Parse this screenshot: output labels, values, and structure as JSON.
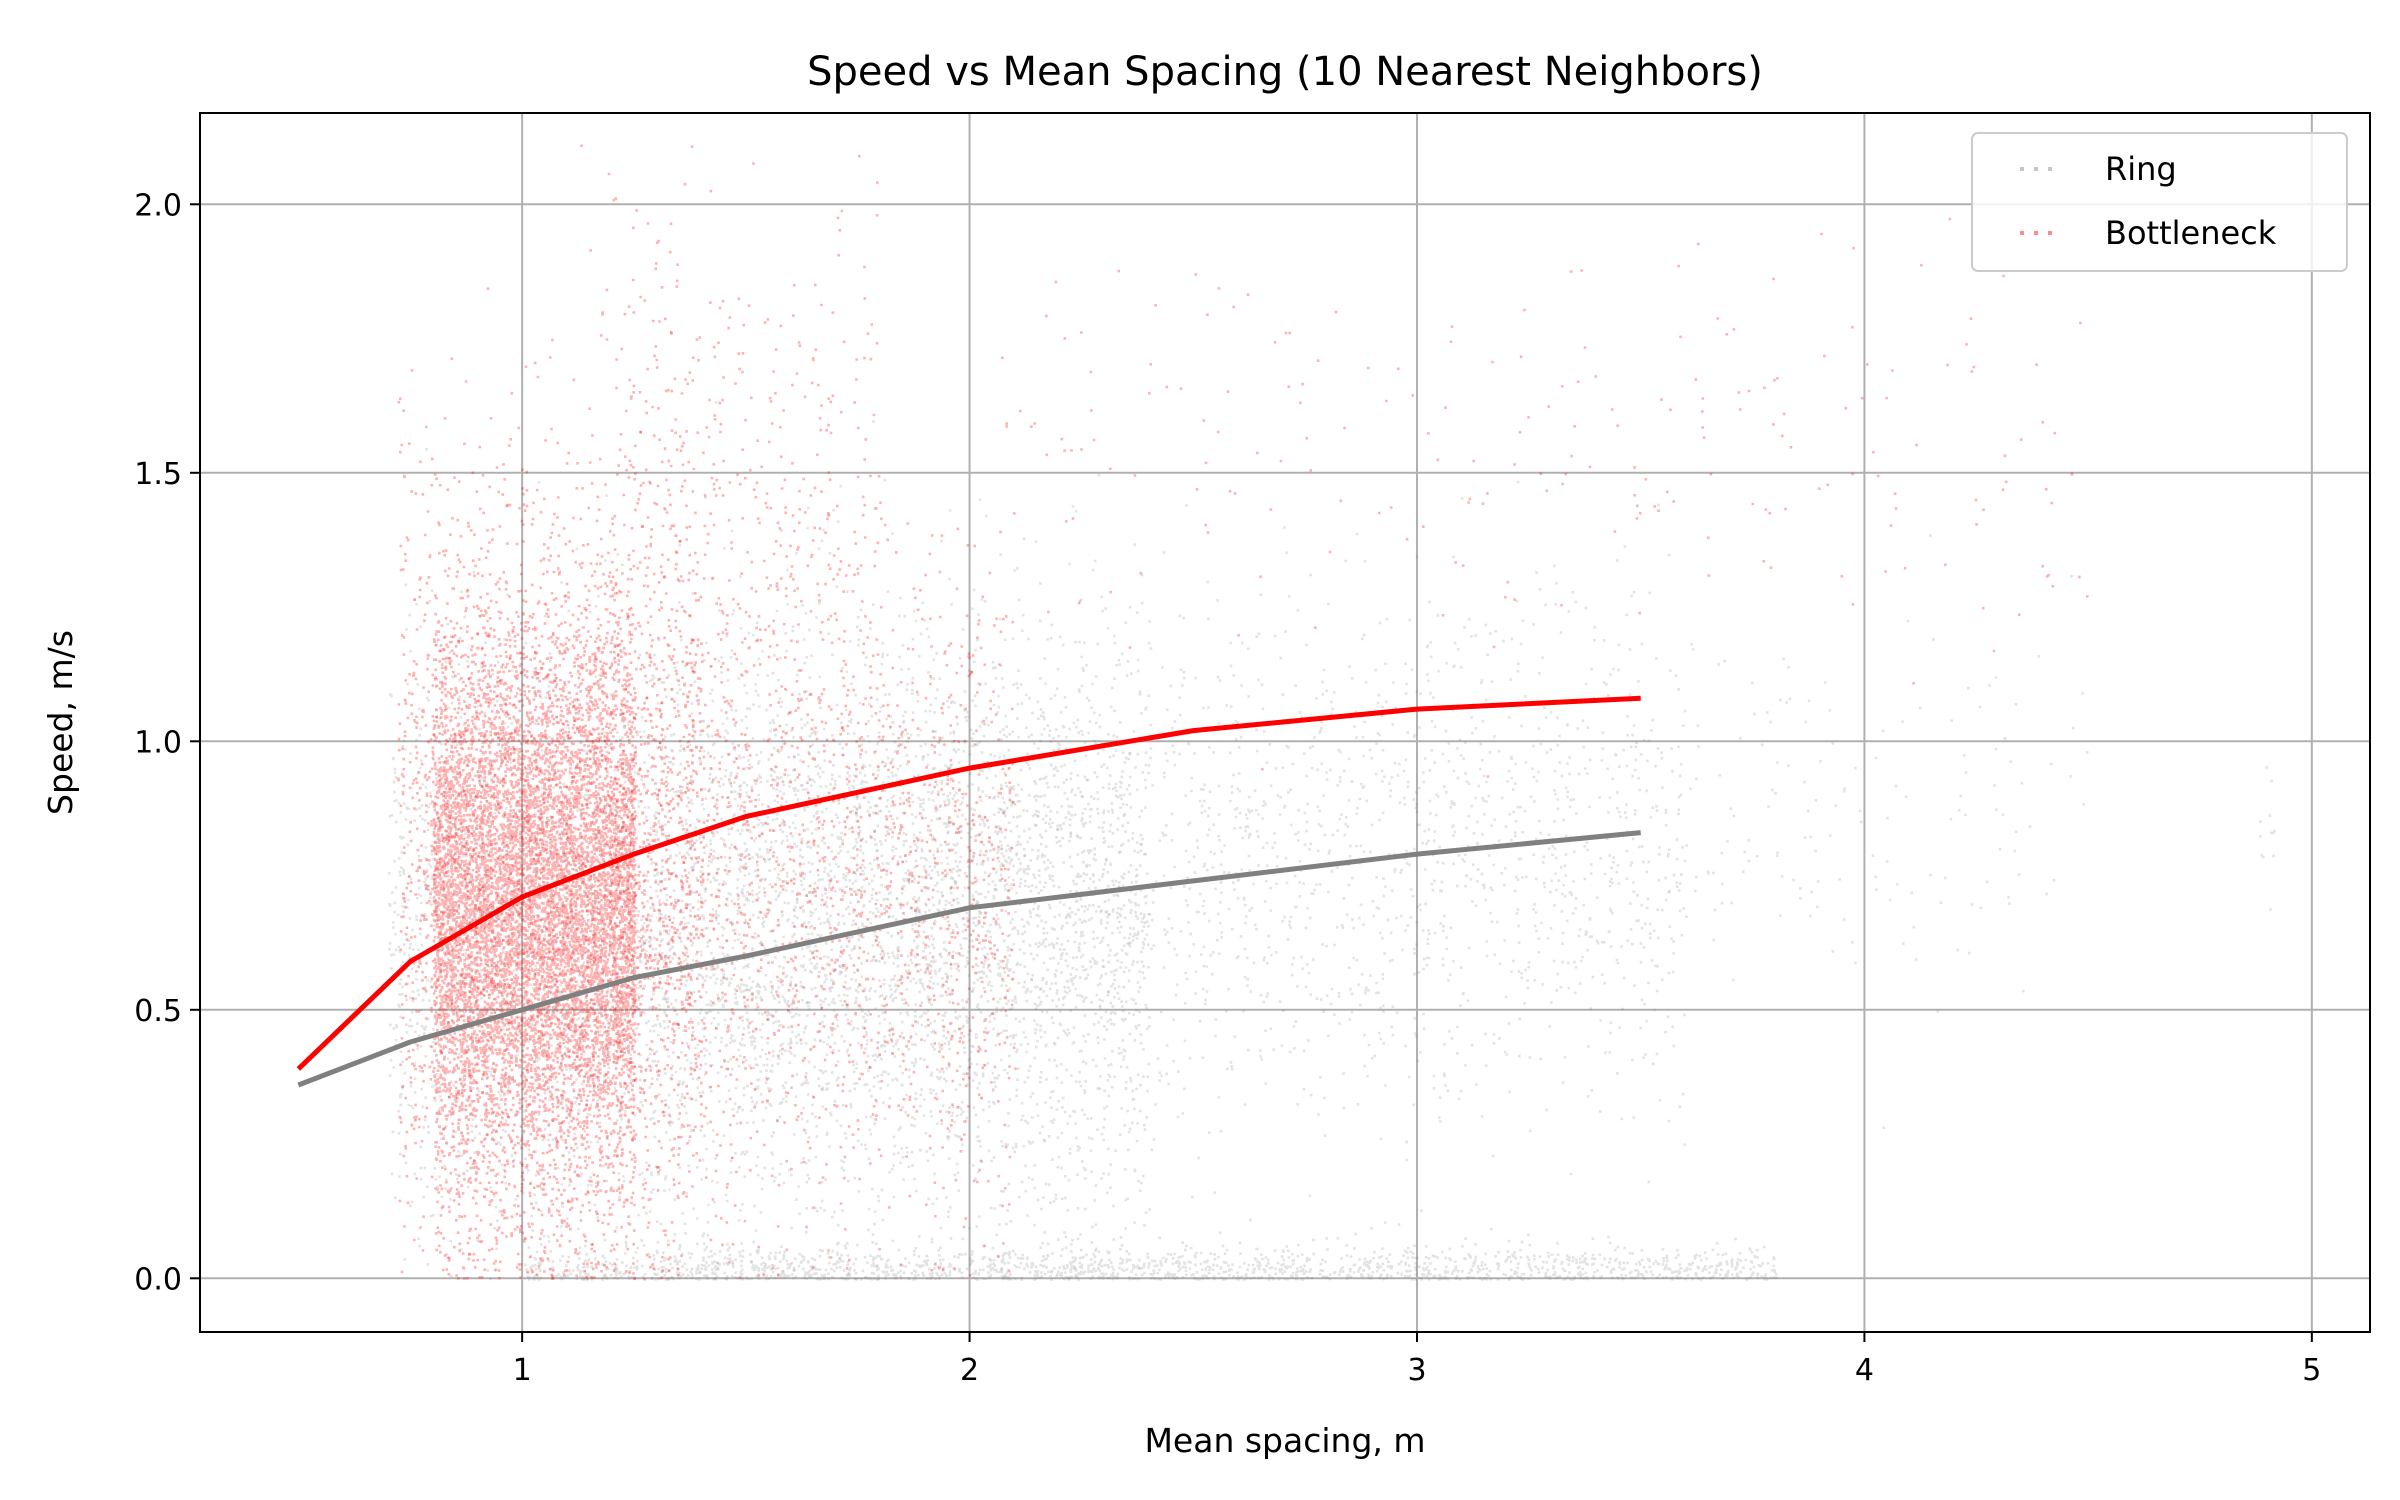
{
  "chart_data": {
    "type": "scatter",
    "title": "Speed vs Mean Spacing (10 Nearest Neighbors)",
    "xlabel": "Mean spacing, m",
    "ylabel": "Speed, m/s",
    "xlim": [
      0.28,
      5.13
    ],
    "ylim": [
      -0.1,
      2.17
    ],
    "x_ticks": [
      1,
      2,
      3,
      4,
      5
    ],
    "x_tick_labels": [
      "1",
      "2",
      "3",
      "4",
      "5"
    ],
    "y_ticks": [
      0.0,
      0.5,
      1.0,
      1.5,
      2.0
    ],
    "y_tick_labels": [
      "0.0",
      "0.5",
      "1.0",
      "1.5",
      "2.0"
    ],
    "grid": true,
    "legend_position": "top-right",
    "series": [
      {
        "name": "Ring",
        "kind": "scatter",
        "color": "#808080",
        "clusters": [
          {
            "x_range": [
              0.7,
              2.4
            ],
            "y_mean": 0.62,
            "y_sd": 0.27,
            "count": 5200
          },
          {
            "x_range": [
              1.3,
              3.6
            ],
            "y_mean": 0.78,
            "y_sd": 0.24,
            "count": 2600
          },
          {
            "x_range": [
              3.5,
              4.5
            ],
            "y_mean": 0.88,
            "y_sd": 0.18,
            "count": 160
          },
          {
            "x_range": [
              4.88,
              4.92
            ],
            "y_mean": 0.82,
            "y_sd": 0.07,
            "count": 12
          },
          {
            "x_range": [
              1.0,
              3.8
            ],
            "y_mean": 0.02,
            "y_sd": 0.02,
            "count": 1700
          }
        ]
      },
      {
        "name": "Bottleneck",
        "kind": "scatter",
        "color": "#ff0000",
        "clusters": [
          {
            "x_range": [
              0.8,
              1.25
            ],
            "y_mean": 0.68,
            "y_sd": 0.26,
            "count": 9000
          },
          {
            "x_range": [
              0.72,
              1.4
            ],
            "y_mean": 0.78,
            "y_sd": 0.35,
            "count": 2400
          },
          {
            "x_range": [
              1.2,
              2.1
            ],
            "y_mean": 0.72,
            "y_sd": 0.3,
            "count": 1800
          },
          {
            "x_range": [
              1.2,
              1.8
            ],
            "y_mean": 1.42,
            "y_sd": 0.3,
            "count": 450
          },
          {
            "x_range": [
              2.0,
              4.5
            ],
            "y_mean": 1.55,
            "y_sd": 0.2,
            "count": 220
          }
        ]
      },
      {
        "name": "",
        "kind": "fit-line",
        "color": "#ff0000",
        "x": [
          0.5,
          0.75,
          1.0,
          1.25,
          1.5,
          2.0,
          2.5,
          3.0,
          3.5
        ],
        "y": [
          0.39,
          0.59,
          0.71,
          0.79,
          0.86,
          0.95,
          1.02,
          1.06,
          1.08
        ]
      },
      {
        "name": "",
        "kind": "fit-line",
        "color": "#808080",
        "x": [
          0.5,
          0.75,
          1.0,
          1.25,
          1.5,
          2.0,
          2.5,
          3.0,
          3.5
        ],
        "y": [
          0.36,
          0.44,
          0.5,
          0.56,
          0.6,
          0.69,
          0.74,
          0.79,
          0.83
        ]
      }
    ]
  }
}
